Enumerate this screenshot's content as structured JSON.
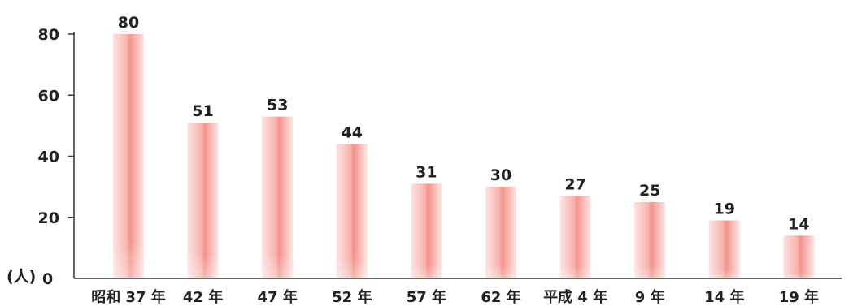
{
  "chart_data": {
    "type": "bar",
    "title": "",
    "xlabel": "",
    "ylabel": "",
    "unit_label": "(人)",
    "categories": [
      "昭和 37 年",
      "42 年",
      "47 年",
      "52 年",
      "57 年",
      "62 年",
      "平成 4 年",
      "9 年",
      "14 年",
      "19 年"
    ],
    "values": [
      80,
      51,
      53,
      44,
      31,
      30,
      27,
      25,
      19,
      14
    ],
    "ylim": [
      0,
      80
    ],
    "yticks": [
      0,
      20,
      40,
      60,
      80
    ],
    "grid": false,
    "legend": "none",
    "bar_color": "#f7a9a4",
    "bar_center_color": "#f48f8a"
  }
}
